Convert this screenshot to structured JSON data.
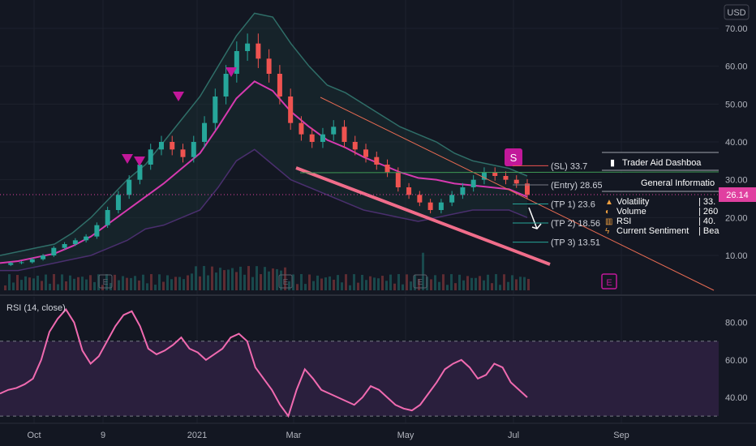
{
  "currency_badge": "USD",
  "last_price_tag": "26.14",
  "rsi_label": "RSI (14, close)",
  "colors": {
    "background": "#131722",
    "grid": "#1e222d",
    "axis_text": "#b2b5be",
    "candle_up": "#26a69a",
    "candle_down": "#ef5350",
    "upper_band": "#2f6e68",
    "lower_band": "#4a2f6e",
    "basis": "#d63ab0",
    "ema": "#f06d8a",
    "wedge_line": "#f06d8a",
    "trend_line": "#e56a52",
    "price_tag": "#e040a0",
    "rsi_line": "#f06ab0",
    "rsi_fill": "#2a1f3d",
    "tp_text": "#d1d4dc",
    "sell_marker": "#c2189a"
  },
  "trade_levels": [
    {
      "label": "(SL) 33.7",
      "value": 33.7
    },
    {
      "label": "(Entry) 28.65",
      "value": 28.65
    },
    {
      "label": "(TP 1) 23.6",
      "value": 23.6
    },
    {
      "label": "(TP 2) 18.56",
      "value": 18.56
    },
    {
      "label": "(TP 3) 13.51",
      "value": 13.51
    }
  ],
  "signal_badge": "S",
  "earnings_badge": "E",
  "dashboard": {
    "title": "Trader Aid Dashboa",
    "section": "General Informatio",
    "rows": [
      {
        "icon": "triangle-icon",
        "label": "Volatility",
        "value": "| 33."
      },
      {
        "icon": "pacman-icon",
        "label": "Volume",
        "value": "| 260"
      },
      {
        "icon": "bars-icon",
        "label": "RSI",
        "value": "| 40."
      },
      {
        "icon": "bolt-icon",
        "label": "Current Sentiment",
        "value": "| Bea"
      }
    ]
  },
  "chart_data": [
    {
      "type": "candlestick",
      "ylim": [
        0,
        75
      ],
      "y_ticks": [
        "70.00",
        "60.00",
        "50.00",
        "40.00",
        "30.00",
        "20.00",
        "10.00"
      ],
      "x_ticks": [
        "Oct",
        "9",
        "2021",
        "Mar",
        "May",
        "Jul",
        "Sep"
      ],
      "approx_close_series": [
        7.5,
        8,
        8.2,
        9,
        10,
        12,
        13,
        14,
        15,
        18,
        22,
        26,
        30,
        34,
        38,
        40,
        38,
        36,
        40,
        45,
        52,
        58,
        64,
        66,
        62,
        58,
        52,
        45,
        42,
        40,
        42,
        44,
        40,
        38,
        36,
        34,
        32,
        28,
        26,
        24,
        22,
        24,
        26,
        28,
        30,
        32,
        31,
        30,
        29,
        26
      ],
      "upper_band_approx": [
        10,
        11,
        12,
        13,
        16,
        20,
        25,
        30,
        34,
        40,
        46,
        52,
        60,
        68,
        74,
        73,
        66,
        60,
        55,
        53,
        50,
        47,
        44,
        42,
        40,
        37,
        35,
        34,
        33,
        31
      ],
      "lower_band_approx": [
        6,
        6,
        7,
        8,
        9,
        10,
        12,
        14,
        17,
        18,
        20,
        22,
        28,
        35,
        38,
        34,
        30,
        28,
        26,
        24,
        22,
        21,
        20,
        19,
        20,
        21,
        22,
        22,
        22,
        20
      ],
      "trade_levels": [
        33.7,
        28.65,
        23.6,
        18.56,
        13.51
      ],
      "last_price": 26.14
    },
    {
      "type": "line",
      "title": "RSI (14, close)",
      "ylim": [
        27,
        92
      ],
      "y_ticks": [
        "80.00",
        "60.00",
        "40.00"
      ],
      "bands": [
        30,
        70
      ],
      "values": [
        42,
        44,
        45,
        47,
        50,
        60,
        75,
        82,
        87,
        80,
        65,
        58,
        62,
        70,
        78,
        84,
        86,
        78,
        66,
        63,
        65,
        68,
        72,
        66,
        64,
        60,
        63,
        66,
        72,
        74,
        70,
        56,
        50,
        44,
        36,
        30,
        44,
        55,
        50,
        44,
        42,
        40,
        38,
        36,
        40,
        46,
        44,
        40,
        36,
        34,
        33,
        36,
        42,
        48,
        55,
        58,
        60,
        56,
        50,
        52,
        58,
        56,
        48,
        44,
        40
      ]
    }
  ]
}
